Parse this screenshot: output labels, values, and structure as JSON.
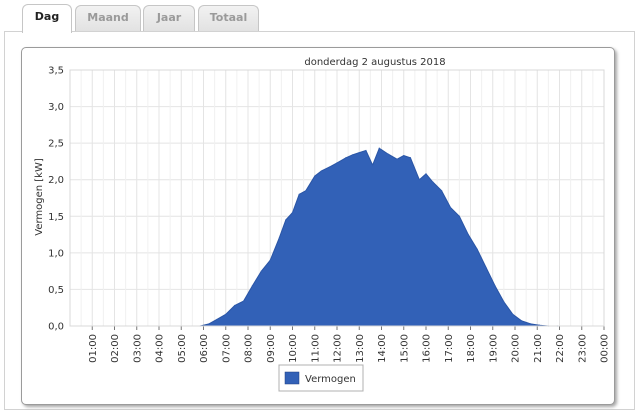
{
  "tabs": [
    {
      "label": "Dag",
      "active": true
    },
    {
      "label": "Maand",
      "active": false
    },
    {
      "label": "Jaar",
      "active": false
    },
    {
      "label": "Totaal",
      "active": false
    }
  ],
  "chart_data": {
    "type": "area",
    "title": "donderdag 2 augustus 2018",
    "ylabel": "Vermogen [kW]",
    "xlabel": "",
    "ylim": [
      0,
      3.5
    ],
    "yticks": [
      "0,0",
      "0,5",
      "1,0",
      "1,5",
      "2,0",
      "2,5",
      "3,0",
      "3,5"
    ],
    "xticks": [
      "01:00",
      "02:00",
      "03:00",
      "04:00",
      "05:00",
      "06:00",
      "07:00",
      "08:00",
      "09:00",
      "10:00",
      "11:00",
      "12:00",
      "13:00",
      "14:00",
      "15:00",
      "16:00",
      "17:00",
      "18:00",
      "19:00",
      "20:00",
      "21:00",
      "22:00",
      "23:00",
      "00:00"
    ],
    "grid": true,
    "legend": "bottom",
    "color": "#3261b7",
    "series": [
      {
        "name": "Vermogen",
        "x": [
          5.85,
          6.25,
          6.6,
          7.0,
          7.4,
          7.8,
          8.2,
          8.6,
          9.0,
          9.4,
          9.7,
          10.0,
          10.3,
          10.6,
          11.0,
          11.3,
          11.7,
          12.0,
          12.4,
          12.7,
          13.0,
          13.3,
          13.6,
          13.9,
          14.3,
          14.7,
          15.0,
          15.3,
          15.7,
          16.0,
          16.3,
          16.7,
          17.1,
          17.5,
          17.9,
          18.3,
          18.7,
          19.1,
          19.5,
          19.9,
          20.3,
          20.7,
          21.1,
          21.5,
          21.9
        ],
        "y": [
          0.0,
          0.03,
          0.09,
          0.16,
          0.28,
          0.34,
          0.55,
          0.75,
          0.9,
          1.2,
          1.45,
          1.55,
          1.8,
          1.85,
          2.05,
          2.12,
          2.18,
          2.23,
          2.3,
          2.34,
          2.37,
          2.4,
          2.2,
          2.43,
          2.35,
          2.28,
          2.33,
          2.3,
          2.0,
          2.08,
          1.97,
          1.85,
          1.62,
          1.5,
          1.25,
          1.05,
          0.8,
          0.55,
          0.33,
          0.16,
          0.07,
          0.03,
          0.01,
          0.0,
          0.0
        ]
      }
    ]
  }
}
